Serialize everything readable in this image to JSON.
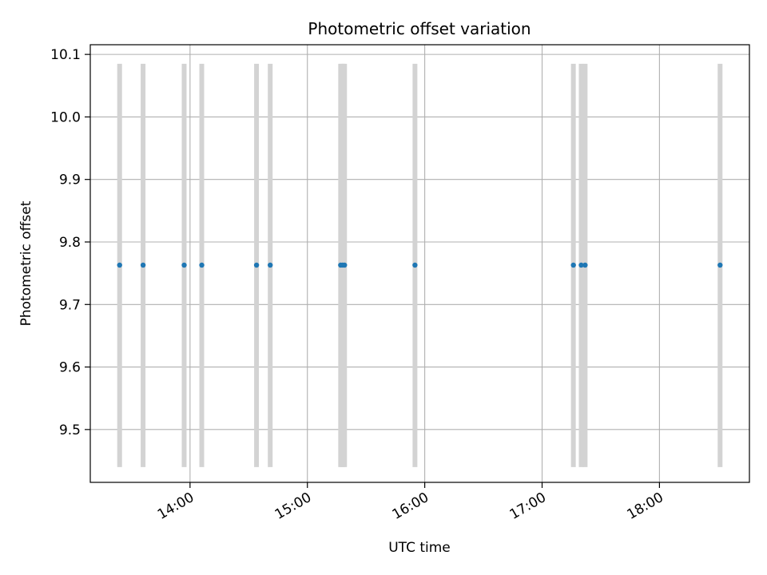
{
  "chart_data": {
    "type": "scatter",
    "title": "Photometric offset variation",
    "xlabel": "UTC time",
    "ylabel": "Photometric offset",
    "x_axis": {
      "type": "time",
      "range": [
        "13:09",
        "18:46"
      ],
      "tick_values": [
        "14:00",
        "15:00",
        "16:00",
        "17:00",
        "18:00"
      ],
      "tick_labels": [
        "14:00",
        "15:00",
        "16:00",
        "17:00",
        "18:00"
      ],
      "tick_rotation_deg": 30
    },
    "y_axis": {
      "range": [
        9.4155,
        10.1155
      ],
      "ticks": [
        9.5,
        9.6,
        9.7,
        9.8,
        9.9,
        10.0,
        10.1
      ],
      "tick_labels": [
        "9.5",
        "9.6",
        "9.7",
        "9.8",
        "9.9",
        "10.0",
        "10.1"
      ]
    },
    "grid": true,
    "series": [
      {
        "color": "#1f77b4",
        "marker": "point",
        "x": [
          "13:24",
          "13:36",
          "13:57",
          "14:06",
          "14:34",
          "14:41",
          "15:17",
          "15:18",
          "15:19",
          "15:55",
          "17:16",
          "17:20",
          "17:22",
          "18:31"
        ],
        "y": [
          9.763,
          9.763,
          9.763,
          9.763,
          9.763,
          9.763,
          9.763,
          9.763,
          9.763,
          9.763,
          9.763,
          9.763,
          9.763,
          9.763
        ]
      }
    ],
    "error_bars": {
      "color": "#d3d3d3",
      "x": [
        "13:24",
        "13:36",
        "13:57",
        "14:06",
        "14:34",
        "14:41",
        "15:17",
        "15:18",
        "15:19",
        "15:55",
        "17:16",
        "17:20",
        "17:22",
        "18:31"
      ],
      "low": 9.44,
      "high": 10.085
    }
  }
}
